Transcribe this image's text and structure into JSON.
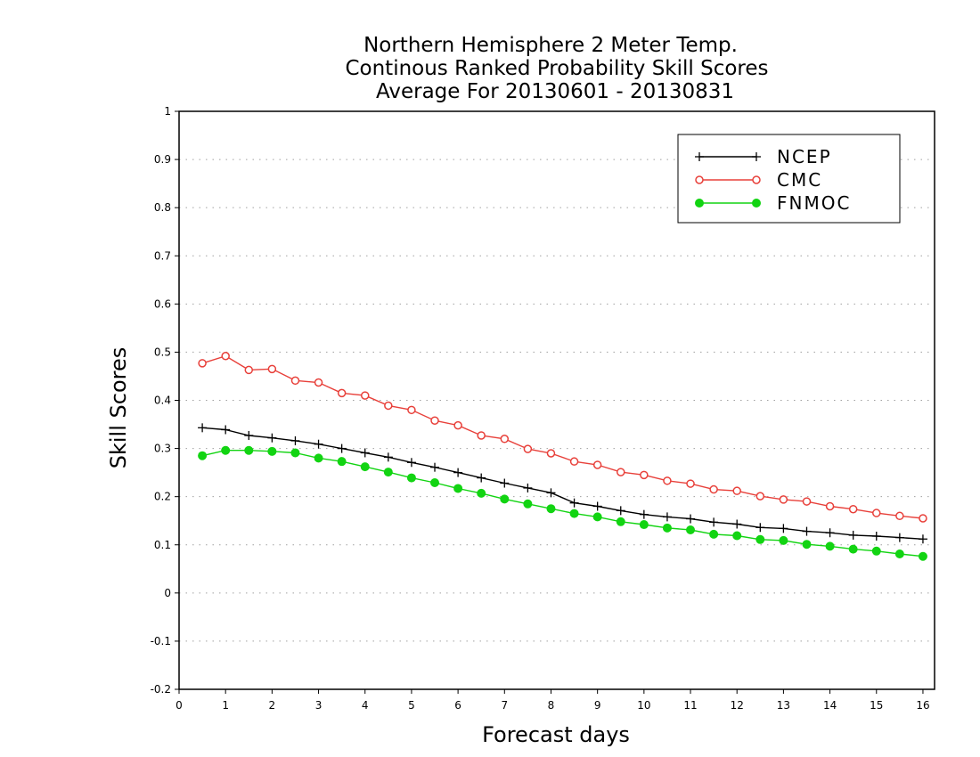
{
  "chart_data": {
    "type": "line",
    "title_lines": [
      "Northern Hemisphere 2 Meter Temp.",
      "Continous Ranked Probability Skill Scores",
      "Average For 20130601 - 20130831"
    ],
    "xlabel": "Forecast days",
    "ylabel": "Skill Scores",
    "xlim": [
      0,
      16.25
    ],
    "ylim": [
      -0.2,
      1
    ],
    "x_ticks": [
      0,
      1,
      2,
      3,
      4,
      5,
      6,
      7,
      8,
      9,
      10,
      11,
      12,
      13,
      14,
      15,
      16
    ],
    "x_tick_labels": [
      "0",
      "1",
      "2",
      "3",
      "4",
      "5",
      "6",
      "7",
      "8",
      "9",
      "10",
      "11",
      "12",
      "13",
      "14",
      "15",
      "16"
    ],
    "y_ticks": [
      -0.2,
      -0.1,
      0,
      0.1,
      0.2,
      0.3,
      0.4,
      0.5,
      0.6,
      0.7,
      0.8,
      0.9,
      1
    ],
    "y_tick_labels": [
      "-0.2",
      "-0.1",
      "0",
      "0.1",
      "0.2",
      "0.3",
      "0.4",
      "0.5",
      "0.6",
      "0.7",
      "0.8",
      "0.9",
      "1"
    ],
    "grid": "horizontal dotted",
    "legend_position": "top-right",
    "x": [
      0.5,
      1.0,
      1.5,
      2.0,
      2.5,
      3.0,
      3.5,
      4.0,
      4.5,
      5.0,
      5.5,
      6.0,
      6.5,
      7.0,
      7.5,
      8.0,
      8.5,
      9.0,
      9.5,
      10.0,
      10.5,
      11.0,
      11.5,
      12.0,
      12.5,
      13.0,
      13.5,
      14.0,
      14.5,
      15.0,
      15.5,
      16.0
    ],
    "series": [
      {
        "name": "NCEP",
        "color": "#000000",
        "marker": "plus",
        "values": [
          0.343,
          0.339,
          0.327,
          0.322,
          0.316,
          0.309,
          0.3,
          0.291,
          0.282,
          0.271,
          0.261,
          0.25,
          0.239,
          0.228,
          0.218,
          0.208,
          0.187,
          0.18,
          0.171,
          0.163,
          0.158,
          0.154,
          0.147,
          0.143,
          0.136,
          0.134,
          0.128,
          0.125,
          0.12,
          0.118,
          0.115,
          0.112
        ]
      },
      {
        "name": "CMC",
        "color": "#e8403a",
        "marker": "open-circle",
        "values": [
          0.477,
          0.492,
          0.463,
          0.465,
          0.441,
          0.437,
          0.415,
          0.41,
          0.389,
          0.38,
          0.358,
          0.348,
          0.327,
          0.32,
          0.299,
          0.29,
          0.273,
          0.266,
          0.251,
          0.245,
          0.233,
          0.227,
          0.215,
          0.212,
          0.201,
          0.194,
          0.19,
          0.18,
          0.174,
          0.166,
          0.16,
          0.155
        ]
      },
      {
        "name": "FNMOC",
        "color": "#12d412",
        "marker": "filled-circle",
        "values": [
          0.285,
          0.296,
          0.296,
          0.294,
          0.291,
          0.28,
          0.273,
          0.262,
          0.251,
          0.239,
          0.229,
          0.217,
          0.207,
          0.195,
          0.185,
          0.175,
          0.165,
          0.158,
          0.148,
          0.142,
          0.135,
          0.131,
          0.122,
          0.119,
          0.111,
          0.109,
          0.101,
          0.097,
          0.091,
          0.087,
          0.081,
          0.076
        ]
      }
    ]
  }
}
